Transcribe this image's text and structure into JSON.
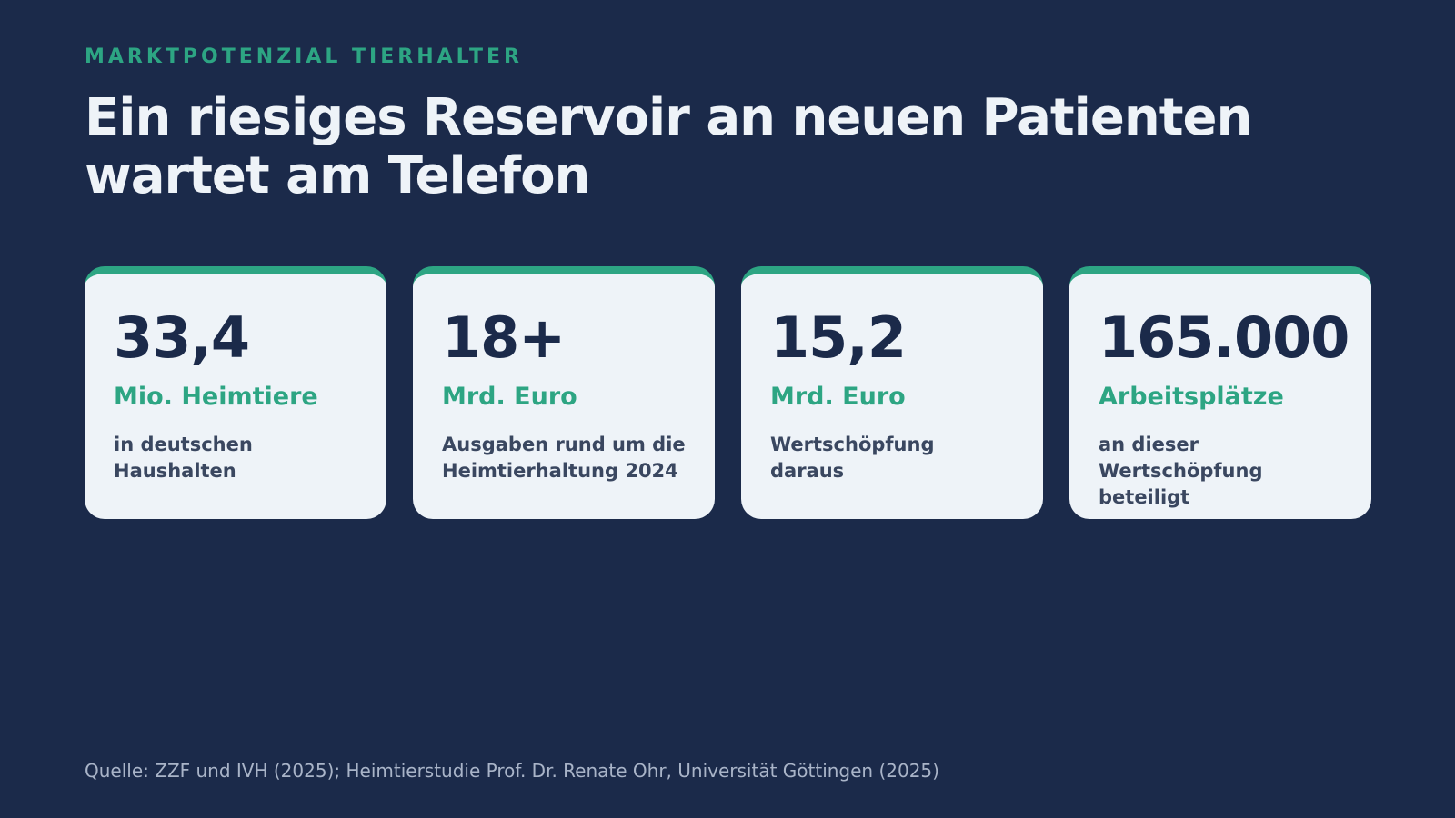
{
  "eyebrow": "MARKTPOTENZIAL TIERHALTER",
  "title": "Ein riesiges Reservoir an neuen Patienten wartet am Telefon",
  "cards": [
    {
      "value": "33,4",
      "unit": "Mio. Heimtiere",
      "description": "in deutschen Haushalten"
    },
    {
      "value": "18+",
      "unit": "Mrd. Euro",
      "description": "Ausgaben rund um die Heimtierhaltung 2024"
    },
    {
      "value": "15,2",
      "unit": "Mrd. Euro",
      "description": "Wertschöpfung daraus"
    },
    {
      "value": "165.000",
      "unit": "Arbeitsplätze",
      "description": "an dieser Wertschöpfung beteiligt"
    }
  ],
  "source": "Quelle: ZZF und IVH (2025); Heimtierstudie Prof. Dr. Renate Ohr, Universität Göttingen (2025)",
  "colors": {
    "background": "#1b2a4a",
    "accent": "#2da583",
    "card": "#eef3f8"
  }
}
